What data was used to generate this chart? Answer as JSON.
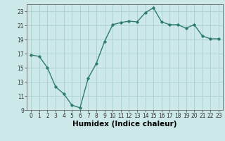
{
  "x": [
    0,
    1,
    2,
    3,
    4,
    5,
    6,
    7,
    8,
    9,
    10,
    11,
    12,
    13,
    14,
    15,
    16,
    17,
    18,
    19,
    20,
    21,
    22,
    23
  ],
  "y": [
    16.8,
    16.6,
    15.0,
    12.3,
    11.3,
    9.7,
    9.3,
    13.5,
    15.6,
    18.7,
    21.1,
    21.4,
    21.6,
    21.5,
    22.8,
    23.5,
    21.5,
    21.1,
    21.1,
    20.6,
    21.1,
    19.5,
    19.1,
    19.1
  ],
  "xlabel": "Humidex (Indice chaleur)",
  "xlim": [
    -0.5,
    23.5
  ],
  "ylim": [
    9,
    24
  ],
  "yticks": [
    9,
    11,
    13,
    15,
    17,
    19,
    21,
    23
  ],
  "xticks": [
    0,
    1,
    2,
    3,
    4,
    5,
    6,
    7,
    8,
    9,
    10,
    11,
    12,
    13,
    14,
    15,
    16,
    17,
    18,
    19,
    20,
    21,
    22,
    23
  ],
  "line_color": "#2e7d6e",
  "marker": "D",
  "marker_size": 1.8,
  "bg_color": "#cce8e8",
  "grid_color": "#aad0d0",
  "tick_label_fontsize": 5.5,
  "xlabel_fontsize": 7.5,
  "line_width": 1.0
}
